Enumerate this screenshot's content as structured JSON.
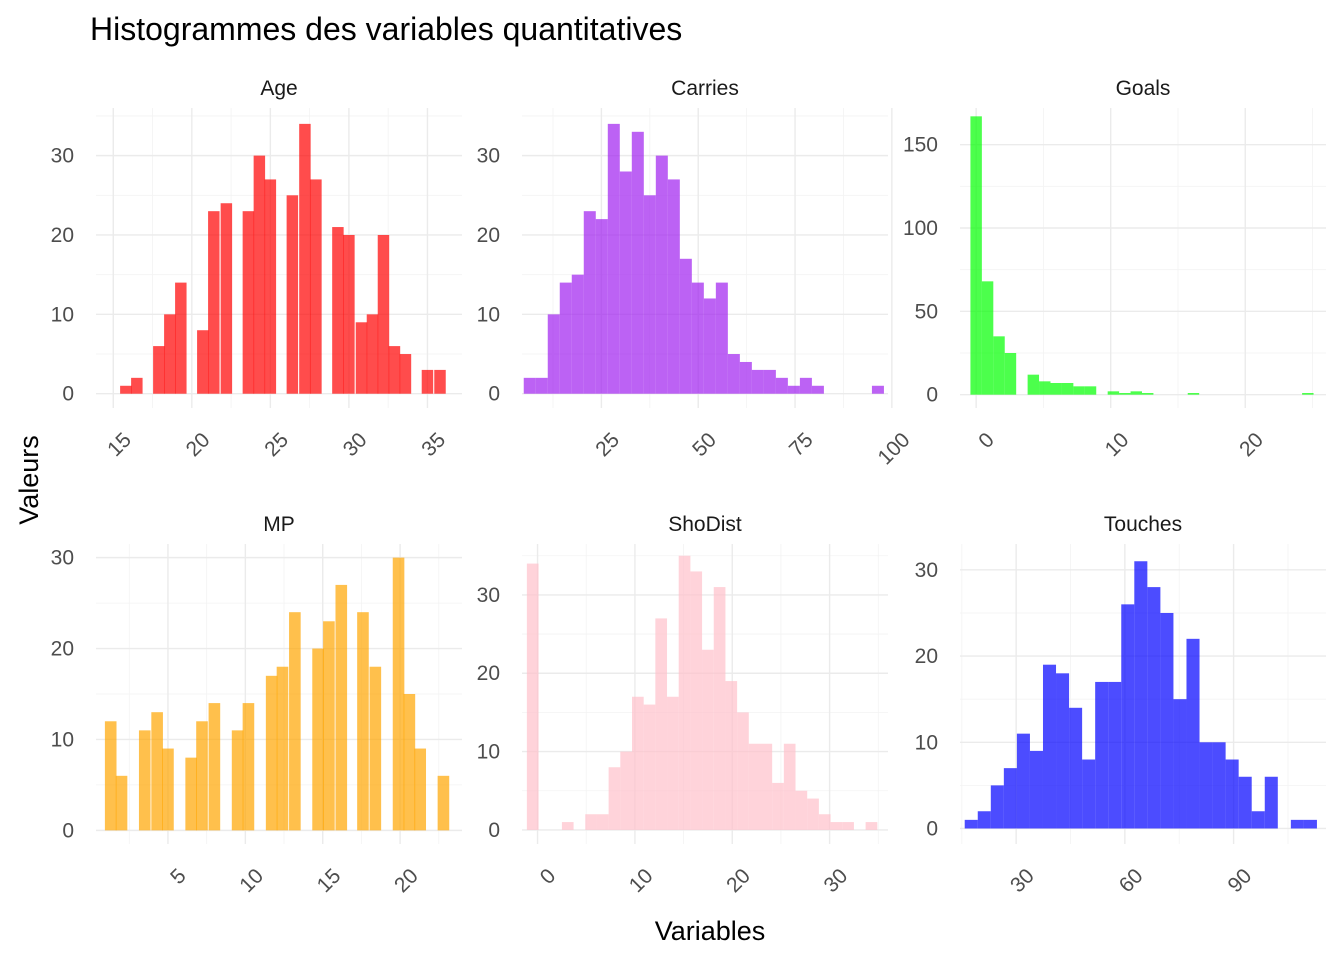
{
  "figure": {
    "title": "Histogrammes des variables quantitatives",
    "xlabel": "Variables",
    "ylabel": "Valeurs"
  },
  "chart_data": [
    {
      "type": "bar",
      "title": "Age",
      "color": "#ff0000",
      "bin_width": 0.73,
      "bins": [
        [
          15.8,
          1
        ],
        [
          16.5,
          2
        ],
        [
          17.9,
          6
        ],
        [
          18.6,
          10
        ],
        [
          19.3,
          14
        ],
        [
          20.7,
          8
        ],
        [
          21.4,
          23
        ],
        [
          22.2,
          24
        ],
        [
          23.6,
          23
        ],
        [
          24.3,
          30
        ],
        [
          25.0,
          27
        ],
        [
          26.4,
          25
        ],
        [
          27.2,
          34
        ],
        [
          27.9,
          27
        ],
        [
          29.3,
          21
        ],
        [
          30.0,
          20
        ],
        [
          30.8,
          9
        ],
        [
          31.5,
          10
        ],
        [
          32.2,
          20
        ],
        [
          32.9,
          6
        ],
        [
          33.6,
          5
        ],
        [
          35.0,
          3
        ],
        [
          35.8,
          3
        ]
      ],
      "xlim": [
        13.9,
        37.2
      ],
      "ylim": [
        -1.8,
        36.0
      ],
      "x_ticks": [
        15,
        20,
        25,
        30,
        35
      ],
      "y_ticks": [
        0,
        10,
        20,
        30
      ]
    },
    {
      "type": "bar",
      "title": "Carries",
      "color": "#a020f0",
      "bin_width": 3.1,
      "bins": [
        [
          6.5,
          2
        ],
        [
          9.6,
          2
        ],
        [
          12.7,
          10
        ],
        [
          15.8,
          14
        ],
        [
          18.9,
          15
        ],
        [
          22.0,
          23
        ],
        [
          25.1,
          22
        ],
        [
          28.2,
          34
        ],
        [
          31.3,
          28
        ],
        [
          34.4,
          33
        ],
        [
          37.5,
          25
        ],
        [
          40.6,
          30
        ],
        [
          43.7,
          27
        ],
        [
          46.8,
          17
        ],
        [
          49.9,
          14
        ],
        [
          53.0,
          12
        ],
        [
          56.1,
          14
        ],
        [
          59.2,
          5
        ],
        [
          62.3,
          4
        ],
        [
          65.4,
          3
        ],
        [
          68.5,
          3
        ],
        [
          71.6,
          2
        ],
        [
          74.7,
          1
        ],
        [
          77.8,
          2
        ],
        [
          80.9,
          1
        ],
        [
          96.4,
          1
        ]
      ],
      "xlim": [
        4.5,
        99.0
      ],
      "ylim": [
        -1.8,
        36.0
      ],
      "x_ticks": [
        25,
        50,
        75,
        100
      ],
      "y_ticks": [
        0,
        10,
        20,
        30
      ]
    },
    {
      "type": "bar",
      "title": "Goals",
      "color": "#00ff00",
      "bin_width": 0.85,
      "bins": [
        [
          0,
          167
        ],
        [
          0.85,
          68
        ],
        [
          1.7,
          35
        ],
        [
          2.55,
          25
        ],
        [
          4.25,
          12
        ],
        [
          5.1,
          8
        ],
        [
          5.95,
          7
        ],
        [
          6.8,
          7
        ],
        [
          7.65,
          5
        ],
        [
          8.5,
          5
        ],
        [
          10.2,
          2
        ],
        [
          11.05,
          1
        ],
        [
          11.9,
          2
        ],
        [
          12.75,
          1
        ],
        [
          16.15,
          1
        ],
        [
          24.65,
          1
        ]
      ],
      "xlim": [
        -1.2,
        26.0
      ],
      "ylim": [
        -8.0,
        172.0
      ],
      "x_ticks": [
        0,
        10,
        20
      ],
      "y_ticks": [
        0,
        50,
        100,
        150
      ]
    },
    {
      "type": "bar",
      "title": "MP",
      "color": "#ffa500",
      "bin_width": 0.75,
      "bins": [
        [
          1.3,
          12
        ],
        [
          2.0,
          6
        ],
        [
          3.5,
          11
        ],
        [
          4.3,
          13
        ],
        [
          5.0,
          9
        ],
        [
          6.5,
          8
        ],
        [
          7.2,
          12
        ],
        [
          8.0,
          14
        ],
        [
          9.5,
          11
        ],
        [
          10.2,
          14
        ],
        [
          11.7,
          17
        ],
        [
          12.4,
          18
        ],
        [
          13.2,
          24
        ],
        [
          14.7,
          20
        ],
        [
          15.4,
          23
        ],
        [
          16.2,
          27
        ],
        [
          17.6,
          24
        ],
        [
          18.4,
          18
        ],
        [
          19.9,
          30
        ],
        [
          20.6,
          15
        ],
        [
          21.3,
          9
        ],
        [
          22.8,
          6
        ]
      ],
      "xlim": [
        0.35,
        24.0
      ],
      "ylim": [
        -1.5,
        31.5
      ],
      "x_ticks": [
        5,
        10,
        15,
        20
      ],
      "y_ticks": [
        0,
        10,
        20,
        30
      ]
    },
    {
      "type": "bar",
      "title": "ShoDist",
      "color": "#ffc0cb",
      "bin_width": 1.2,
      "bins": [
        [
          -0.5,
          34
        ],
        [
          3.1,
          1
        ],
        [
          5.5,
          2
        ],
        [
          6.7,
          2
        ],
        [
          7.9,
          8
        ],
        [
          9.1,
          10
        ],
        [
          10.3,
          17
        ],
        [
          11.5,
          16
        ],
        [
          12.7,
          27
        ],
        [
          13.9,
          17
        ],
        [
          15.1,
          35
        ],
        [
          16.3,
          33
        ],
        [
          17.5,
          23
        ],
        [
          18.7,
          31
        ],
        [
          19.9,
          19
        ],
        [
          21.1,
          15
        ],
        [
          22.3,
          11
        ],
        [
          23.5,
          11
        ],
        [
          24.7,
          6
        ],
        [
          25.9,
          11
        ],
        [
          27.1,
          5
        ],
        [
          28.3,
          4
        ],
        [
          29.5,
          2
        ],
        [
          30.7,
          1
        ],
        [
          31.9,
          1
        ],
        [
          34.3,
          1
        ]
      ],
      "xlim": [
        -1.6,
        36.0
      ],
      "ylim": [
        -1.8,
        36.5
      ],
      "x_ticks": [
        0,
        10,
        20,
        30
      ],
      "y_ticks": [
        0,
        10,
        20,
        30
      ]
    },
    {
      "type": "bar",
      "title": "Touches",
      "color": "#0000ff",
      "bin_width": 3.6,
      "bins": [
        [
          17.6,
          1
        ],
        [
          21.2,
          2
        ],
        [
          24.8,
          5
        ],
        [
          28.4,
          7
        ],
        [
          32.0,
          11
        ],
        [
          35.6,
          9
        ],
        [
          39.2,
          19
        ],
        [
          42.8,
          18
        ],
        [
          46.4,
          14
        ],
        [
          50.0,
          8
        ],
        [
          53.6,
          17
        ],
        [
          57.2,
          17
        ],
        [
          60.8,
          26
        ],
        [
          64.4,
          31
        ],
        [
          68.0,
          28
        ],
        [
          71.6,
          25
        ],
        [
          75.2,
          15
        ],
        [
          78.8,
          22
        ],
        [
          82.4,
          10
        ],
        [
          86.0,
          10
        ],
        [
          89.6,
          8
        ],
        [
          93.2,
          6
        ],
        [
          96.8,
          2
        ],
        [
          100.4,
          6
        ],
        [
          107.6,
          1
        ],
        [
          111.2,
          1
        ]
      ],
      "xlim": [
        14.5,
        115.5
      ],
      "ylim": [
        -1.8,
        33.0
      ],
      "x_ticks": [
        30,
        60,
        90
      ],
      "y_ticks": [
        0,
        10,
        20,
        30
      ]
    }
  ]
}
